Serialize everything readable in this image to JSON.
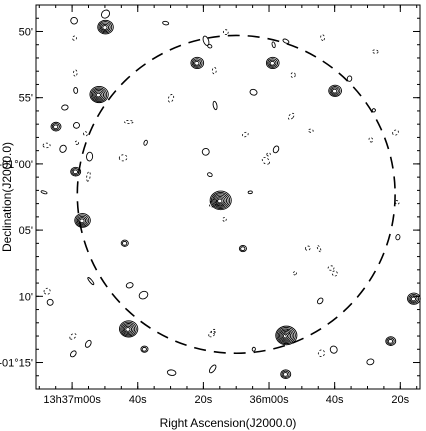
{
  "chart_data": {
    "type": "contour",
    "xlabel": "Right Ascension(J2000.0)",
    "ylabel": "Declination(J2000.0)",
    "x_ticks": [
      {
        "ra_s": 960,
        "label": "13h37m00s"
      },
      {
        "ra_s": 940,
        "label": "40s"
      },
      {
        "ra_s": 920,
        "label": "20s"
      },
      {
        "ra_s": 900,
        "label": "36m00s"
      },
      {
        "ra_s": 880,
        "label": "40s"
      },
      {
        "ra_s": 860,
        "label": "20s"
      }
    ],
    "y_ticks": [
      {
        "dec_arcmin": -50,
        "label": "50'"
      },
      {
        "dec_arcmin": -55,
        "label": "55'"
      },
      {
        "dec_arcmin": -60,
        "label": "-01°00'"
      },
      {
        "dec_arcmin": -65,
        "label": "05'"
      },
      {
        "dec_arcmin": -70,
        "label": "10'"
      },
      {
        "dec_arcmin": -75,
        "label": "-01°15'"
      }
    ],
    "xlim_ra_s": [
      971,
      854
    ],
    "ylim_dec_arcmin": [
      -77,
      -48
    ],
    "primary_beam": {
      "center_ra_s": 910,
      "center_dec_arcmin": -62.3,
      "radius_arcmin": 12.0
    },
    "sources": [
      {
        "ra_s": 950,
        "dec_arcmin": -49.7,
        "rings": 5
      },
      {
        "ra_s": 952,
        "dec_arcmin": -54.8,
        "rings": 6
      },
      {
        "ra_s": 965,
        "dec_arcmin": -57.2,
        "rings": 3
      },
      {
        "ra_s": 959,
        "dec_arcmin": -60.6,
        "rings": 3
      },
      {
        "ra_s": 957,
        "dec_arcmin": -64.3,
        "rings": 5
      },
      {
        "ra_s": 922,
        "dec_arcmin": -52.4,
        "rings": 4
      },
      {
        "ra_s": 899,
        "dec_arcmin": -52.4,
        "rings": 4
      },
      {
        "ra_s": 880,
        "dec_arcmin": -54.5,
        "rings": 4
      },
      {
        "ra_s": 915,
        "dec_arcmin": -62.8,
        "rings": 7
      },
      {
        "ra_s": 943,
        "dec_arcmin": -72.5,
        "rings": 6
      },
      {
        "ra_s": 938,
        "dec_arcmin": -74.0,
        "rings": 2
      },
      {
        "ra_s": 895,
        "dec_arcmin": -73.0,
        "rings": 7
      },
      {
        "ra_s": 895,
        "dec_arcmin": -75.9,
        "rings": 3
      },
      {
        "ra_s": 856,
        "dec_arcmin": -70.2,
        "rings": 4
      },
      {
        "ra_s": 863,
        "dec_arcmin": -73.4,
        "rings": 3
      },
      {
        "ra_s": 908,
        "dec_arcmin": -66.4,
        "rings": 2
      },
      {
        "ra_s": 944,
        "dec_arcmin": -66.0,
        "rings": 2
      }
    ]
  }
}
